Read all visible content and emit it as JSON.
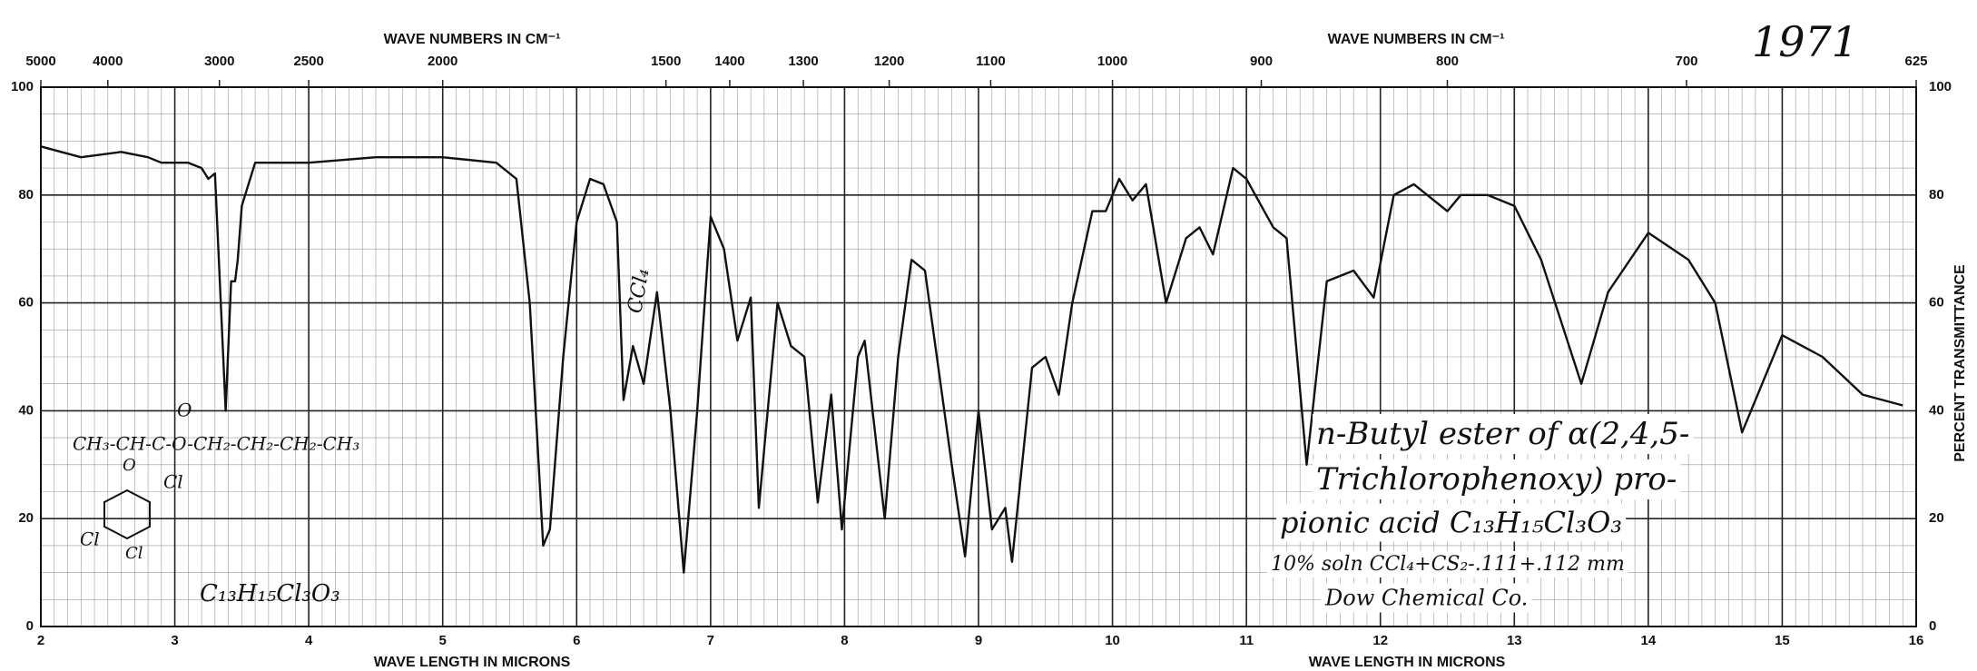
{
  "chart_data": {
    "type": "line",
    "x_labels": [
      "WAVE LENGTH IN MICRONS",
      "WAVE LENGTH IN MICRONS"
    ],
    "x2_labels": [
      "WAVE NUMBERS IN CM⁻¹",
      "WAVE NUMBERS IN CM⁻¹"
    ],
    "y_label": "PERCENT TRANSMITTANCE",
    "xlim": [
      2,
      16
    ],
    "xticks": [
      2,
      3,
      4,
      5,
      6,
      7,
      8,
      9,
      10,
      11,
      12,
      13,
      14,
      15,
      16
    ],
    "x2ticks": [
      5000,
      4000,
      3000,
      2500,
      2000,
      1500,
      1400,
      1300,
      1200,
      1100,
      1000,
      900,
      800,
      700,
      625
    ],
    "ylim": [
      0,
      100
    ],
    "yticks": [
      0,
      20,
      40,
      60,
      80,
      100
    ],
    "grid": true,
    "color": "#111111",
    "x": [
      2.0,
      2.3,
      2.6,
      2.8,
      2.9,
      3.1,
      3.2,
      3.25,
      3.3,
      3.38,
      3.42,
      3.45,
      3.47,
      3.5,
      3.6,
      4.0,
      4.5,
      5.0,
      5.4,
      5.55,
      5.65,
      5.75,
      5.8,
      5.9,
      6.0,
      6.1,
      6.2,
      6.3,
      6.35,
      6.42,
      6.5,
      6.6,
      6.7,
      6.8,
      6.9,
      7.0,
      7.1,
      7.2,
      7.3,
      7.36,
      7.5,
      7.6,
      7.7,
      7.8,
      7.9,
      7.98,
      8.1,
      8.15,
      8.3,
      8.4,
      8.5,
      8.6,
      8.8,
      8.9,
      9.0,
      9.1,
      9.2,
      9.25,
      9.4,
      9.5,
      9.6,
      9.7,
      9.85,
      9.95,
      10.05,
      10.15,
      10.25,
      10.4,
      10.55,
      10.65,
      10.75,
      10.9,
      11.0,
      11.2,
      11.3,
      11.45,
      11.6,
      11.8,
      11.95,
      12.1,
      12.25,
      12.5,
      12.6,
      12.8,
      13.0,
      13.2,
      13.5,
      13.7,
      14.0,
      14.3,
      14.5,
      14.7,
      15.0,
      15.3,
      15.6,
      15.9
    ],
    "values": [
      89,
      87,
      88,
      87,
      86,
      86,
      85,
      83,
      84,
      40,
      64,
      64,
      68,
      78,
      86,
      86,
      87,
      87,
      86,
      83,
      60,
      15,
      18,
      50,
      75,
      83,
      82,
      75,
      42,
      52,
      45,
      62,
      40,
      10,
      40,
      76,
      70,
      53,
      61,
      22,
      60,
      52,
      50,
      23,
      43,
      18,
      50,
      53,
      20,
      50,
      68,
      66,
      30,
      13,
      40,
      18,
      22,
      12,
      48,
      50,
      43,
      60,
      77,
      77,
      83,
      79,
      82,
      60,
      72,
      74,
      69,
      85,
      83,
      74,
      72,
      30,
      64,
      66,
      61,
      80,
      82,
      77,
      80,
      80,
      78,
      68,
      45,
      62,
      73,
      68,
      60,
      36,
      54,
      50,
      43,
      41
    ],
    "annotations": [
      "1971",
      "n-Butyl ester of α(2,4,5-",
      "Trichlorophenoxy) pro-",
      "pionic acid  C₁₃H₁₅Cl₃O₃",
      "10% soln CCl₄+CS₂-.111+.112 mm",
      "Dow Chemical Co.",
      "CCl₄",
      "C₁₃H₁₅Cl₃O₃",
      "O",
      "CH₃-CH-C-O-CH₂-CH₂-CH₂-CH₃",
      "O",
      "Cl",
      "Cl",
      "Cl"
    ]
  }
}
